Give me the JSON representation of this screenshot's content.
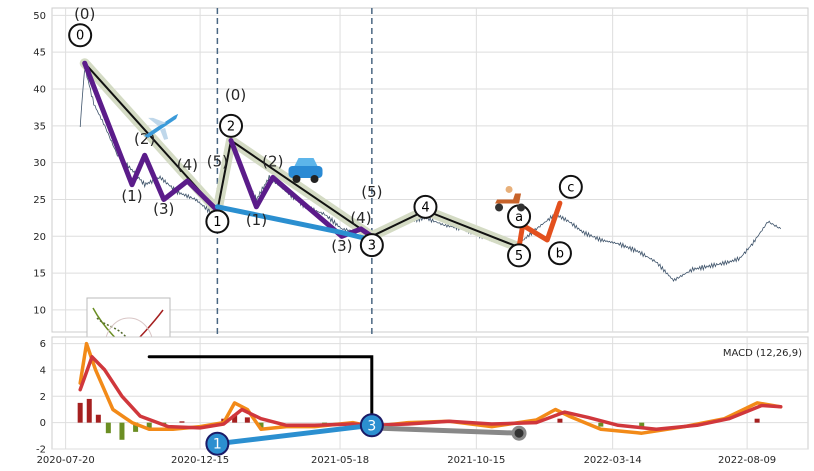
{
  "chart_data": [
    {
      "type": "line",
      "panel": "price",
      "ylim": [
        7,
        51
      ],
      "yticks": [
        10,
        15,
        20,
        25,
        30,
        35,
        40,
        45,
        50
      ],
      "xlim": [
        "2020-07-05",
        "2022-10-15"
      ],
      "xticks": [
        "2020-07-20",
        "2020-12-15",
        "2021-05-18",
        "2021-10-15",
        "2022-03-14",
        "2022-08-09"
      ],
      "grid": true,
      "vertical_markers": [
        "2021-01-03",
        "2021-06-22"
      ],
      "price_series": [
        [
          "2020-08-05",
          35
        ],
        [
          "2020-08-10",
          43
        ],
        [
          "2020-08-20",
          38
        ],
        [
          "2020-09-01",
          35
        ],
        [
          "2020-09-15",
          31
        ],
        [
          "2020-10-01",
          29
        ],
        [
          "2020-10-15",
          27
        ],
        [
          "2020-11-01",
          28
        ],
        [
          "2020-11-20",
          26
        ],
        [
          "2020-12-10",
          25
        ],
        [
          "2021-01-03",
          22.5
        ],
        [
          "2021-01-18",
          33
        ],
        [
          "2021-02-01",
          28
        ],
        [
          "2021-02-15",
          25
        ],
        [
          "2021-03-01",
          28
        ],
        [
          "2021-03-20",
          26
        ],
        [
          "2021-04-10",
          24
        ],
        [
          "2021-05-01",
          23
        ],
        [
          "2021-05-20",
          21
        ],
        [
          "2021-06-10",
          20.5
        ],
        [
          "2021-06-22",
          19.5
        ],
        [
          "2021-07-10",
          21
        ],
        [
          "2021-08-01",
          22
        ],
        [
          "2021-08-20",
          22.5
        ],
        [
          "2021-09-10",
          21.5
        ],
        [
          "2021-10-01",
          21
        ],
        [
          "2021-10-20",
          20
        ],
        [
          "2021-11-10",
          19.5
        ],
        [
          "2021-12-01",
          19
        ],
        [
          "2021-12-20",
          21
        ],
        [
          "2022-01-10",
          23
        ],
        [
          "2022-01-25",
          22
        ],
        [
          "2022-02-10",
          20.5
        ],
        [
          "2022-03-01",
          19.5
        ],
        [
          "2022-03-20",
          19
        ],
        [
          "2022-04-10",
          18
        ],
        [
          "2022-05-01",
          16.5
        ],
        [
          "2022-05-20",
          14
        ],
        [
          "2022-06-10",
          15.5
        ],
        [
          "2022-07-01",
          16
        ],
        [
          "2022-07-20",
          16.5
        ],
        [
          "2022-08-01",
          17
        ],
        [
          "2022-08-15",
          19
        ],
        [
          "2022-09-01",
          22
        ],
        [
          "2022-09-15",
          21
        ]
      ],
      "waves": [
        {
          "color": "#d4dbc4",
          "width": 10,
          "points": [
            [
              "2020-08-10",
              43.5
            ],
            [
              "2021-01-03",
              23.5
            ],
            [
              "2021-01-18",
              33
            ],
            [
              "2021-06-22",
              20
            ],
            [
              "2021-08-20",
              23.5
            ],
            [
              "2021-12-01",
              18.5
            ]
          ]
        },
        {
          "color": "#111111",
          "width": 2,
          "points": [
            [
              "2020-08-10",
              43.5
            ],
            [
              "2021-01-03",
              23.5
            ],
            [
              "2021-01-18",
              33
            ],
            [
              "2021-06-22",
              20
            ],
            [
              "2021-08-20",
              23.5
            ],
            [
              "2021-12-01",
              18.5
            ]
          ]
        },
        {
          "color": "#5b1c8a",
          "width": 5,
          "points": [
            [
              "2020-08-10",
              43.5
            ],
            [
              "2020-10-01",
              27
            ],
            [
              "2020-10-15",
              31
            ],
            [
              "2020-11-05",
              25
            ],
            [
              "2020-12-01",
              27.5
            ],
            [
              "2021-01-03",
              23.5
            ]
          ]
        },
        {
          "color": "#5b1c8a",
          "width": 5,
          "points": [
            [
              "2021-01-18",
              33
            ],
            [
              "2021-02-15",
              24
            ],
            [
              "2021-03-05",
              28
            ],
            [
              "2021-05-20",
              20
            ],
            [
              "2021-06-10",
              21
            ],
            [
              "2021-06-22",
              20
            ]
          ]
        },
        {
          "color": "#2b8fd0",
          "width": 5,
          "points": [
            [
              "2021-01-03",
              24
            ],
            [
              "2021-05-20",
              20.5
            ],
            [
              "2021-06-22",
              19.5
            ]
          ]
        },
        {
          "color": "#e3501e",
          "width": 5,
          "points": [
            [
              "2021-12-01",
              18.5
            ],
            [
              "2021-12-05",
              21.5
            ],
            [
              "2022-01-01",
              19.5
            ],
            [
              "2022-01-15",
              24.5
            ]
          ]
        }
      ],
      "circle_labels": [
        {
          "text": "0",
          "x": "2020-08-05",
          "y": 47.3
        },
        {
          "text": "2",
          "x": "2021-01-18",
          "y": 35
        },
        {
          "text": "4",
          "x": "2021-08-20",
          "y": 24
        },
        {
          "text": "1",
          "x": "2021-01-03",
          "y": 22
        },
        {
          "text": "3",
          "x": "2021-06-22",
          "y": 18.8
        },
        {
          "text": "5",
          "x": "2021-12-01",
          "y": 17.4
        },
        {
          "text": "a",
          "x": "2021-12-01",
          "y": 22.7
        },
        {
          "text": "b",
          "x": "2022-01-15",
          "y": 17.7
        },
        {
          "text": "c",
          "x": "2022-01-27",
          "y": 26.7
        }
      ],
      "wave_labels": [
        {
          "text": "(0)",
          "x": "2020-08-10",
          "y": 49.5
        },
        {
          "text": "(2)",
          "x": "2020-10-15",
          "y": 32.5
        },
        {
          "text": "(1)",
          "x": "2020-10-01",
          "y": 24.8
        },
        {
          "text": "(3)",
          "x": "2020-11-05",
          "y": 23
        },
        {
          "text": "(4)",
          "x": "2020-12-01",
          "y": 29
        },
        {
          "text": "(5)",
          "x": "2021-01-03",
          "y": 29.5
        },
        {
          "text": "(0)",
          "x": "2021-01-23",
          "y": 38.5
        },
        {
          "text": "(2)",
          "x": "2021-03-05",
          "y": 29.5
        },
        {
          "text": "(1)",
          "x": "2021-02-15",
          "y": 21.5
        },
        {
          "text": "(3)",
          "x": "2021-05-20",
          "y": 18
        },
        {
          "text": "(4)",
          "x": "2021-06-10",
          "y": 21.8
        },
        {
          "text": "(5)",
          "x": "2021-06-22",
          "y": 25.3
        }
      ],
      "decorations": [
        {
          "icon": "airplane-icon",
          "x": "2020-11-01",
          "y": 35
        },
        {
          "icon": "car-icon",
          "x": "2021-04-10",
          "y": 29
        },
        {
          "icon": "scooter-icon",
          "x": "2021-11-20",
          "y": 25
        }
      ]
    },
    {
      "type": "line",
      "panel": "macd",
      "legend_text": "MACD (12,26,9)",
      "ylim": [
        -2,
        6.5
      ],
      "yticks": [
        -2,
        0,
        2,
        4,
        6
      ],
      "xticks": [
        "2020-07-20",
        "2020-12-15",
        "2021-05-18",
        "2021-10-15",
        "2022-03-14",
        "2022-08-09"
      ],
      "grid": true,
      "series": [
        {
          "color": "#f28a18",
          "values": [
            [
              "2020-08-05",
              3
            ],
            [
              "2020-08-12",
              6
            ],
            [
              "2020-08-22",
              4
            ],
            [
              "2020-09-10",
              1
            ],
            [
              "2020-10-01",
              0
            ],
            [
              "2020-10-20",
              -0.5
            ],
            [
              "2020-11-15",
              -0.5
            ],
            [
              "2020-12-15",
              -0.3
            ],
            [
              "2021-01-10",
              0
            ],
            [
              "2021-01-22",
              1.5
            ],
            [
              "2021-02-05",
              1
            ],
            [
              "2021-02-20",
              -0.5
            ],
            [
              "2021-03-20",
              -0.3
            ],
            [
              "2021-04-20",
              -0.3
            ],
            [
              "2021-06-01",
              0
            ],
            [
              "2021-06-22",
              -0.3
            ],
            [
              "2021-08-01",
              0
            ],
            [
              "2021-09-15",
              0.1
            ],
            [
              "2021-11-01",
              -0.3
            ],
            [
              "2021-12-20",
              0.2
            ],
            [
              "2022-01-10",
              1
            ],
            [
              "2022-01-25",
              0.5
            ],
            [
              "2022-03-01",
              -0.5
            ],
            [
              "2022-04-15",
              -0.8
            ],
            [
              "2022-06-01",
              -0.3
            ],
            [
              "2022-07-15",
              0.3
            ],
            [
              "2022-08-20",
              1.5
            ],
            [
              "2022-09-15",
              1.2
            ]
          ]
        },
        {
          "color": "#d0373c",
          "values": [
            [
              "2020-08-05",
              2.5
            ],
            [
              "2020-08-18",
              5
            ],
            [
              "2020-09-01",
              4
            ],
            [
              "2020-09-20",
              2
            ],
            [
              "2020-10-10",
              0.5
            ],
            [
              "2020-11-10",
              -0.3
            ],
            [
              "2020-12-15",
              -0.4
            ],
            [
              "2021-01-10",
              -0.1
            ],
            [
              "2021-01-30",
              1
            ],
            [
              "2021-02-20",
              0.3
            ],
            [
              "2021-03-20",
              -0.2
            ],
            [
              "2021-04-20",
              -0.2
            ],
            [
              "2021-06-01",
              -0.1
            ],
            [
              "2021-06-22",
              -0.2
            ],
            [
              "2021-08-01",
              -0.1
            ],
            [
              "2021-09-15",
              0.1
            ],
            [
              "2021-11-01",
              -0.1
            ],
            [
              "2021-12-20",
              0
            ],
            [
              "2022-01-20",
              0.8
            ],
            [
              "2022-02-15",
              0.4
            ],
            [
              "2022-03-20",
              -0.2
            ],
            [
              "2022-05-01",
              -0.5
            ],
            [
              "2022-06-15",
              -0.2
            ],
            [
              "2022-07-20",
              0.3
            ],
            [
              "2022-08-25",
              1.3
            ],
            [
              "2022-09-15",
              1.2
            ]
          ]
        }
      ],
      "histogram_bars": [
        [
          "2020-08-05",
          1.5
        ],
        [
          "2020-08-15",
          1.8
        ],
        [
          "2020-08-25",
          0.6
        ],
        [
          "2020-09-05",
          -0.8
        ],
        [
          "2020-09-20",
          -1.3
        ],
        [
          "2020-10-05",
          -0.7
        ],
        [
          "2020-10-20",
          -0.4
        ],
        [
          "2020-11-05",
          -0.2
        ],
        [
          "2020-11-25",
          0.1
        ],
        [
          "2021-01-10",
          0.3
        ],
        [
          "2021-01-22",
          0.6
        ],
        [
          "2021-02-05",
          0.4
        ],
        [
          "2021-02-20",
          -0.4
        ],
        [
          "2021-05-01",
          -0.1
        ],
        [
          "2021-08-01",
          0.1
        ],
        [
          "2021-12-20",
          0.1
        ],
        [
          "2022-01-15",
          0.3
        ],
        [
          "2022-03-01",
          -0.3
        ],
        [
          "2022-04-15",
          -0.3
        ],
        [
          "2022-08-20",
          0.3
        ]
      ],
      "overlay_lines": [
        {
          "color": "#000000",
          "width": 3,
          "points": [
            [
              "2020-10-20",
              5
            ],
            [
              "2021-06-22",
              5
            ],
            [
              "2021-06-22",
              0
            ]
          ]
        },
        {
          "color": "#2b8fd0",
          "width": 5,
          "points": [
            [
              "2021-01-03",
              -1.6
            ],
            [
              "2021-06-22",
              -0.2
            ]
          ]
        },
        {
          "color": "#888888",
          "width": 5,
          "points": [
            [
              "2021-06-22",
              -0.4
            ],
            [
              "2021-12-01",
              -0.8
            ]
          ]
        }
      ],
      "circle_markers": [
        {
          "text": "1",
          "x": "2021-01-03",
          "y": -1.6,
          "fill": "#2b8fd0"
        },
        {
          "text": "3",
          "x": "2021-06-22",
          "y": -0.2,
          "fill": "#2b8fd0"
        }
      ],
      "end_dot": {
        "x": "2021-12-01",
        "y": -0.8
      }
    }
  ]
}
